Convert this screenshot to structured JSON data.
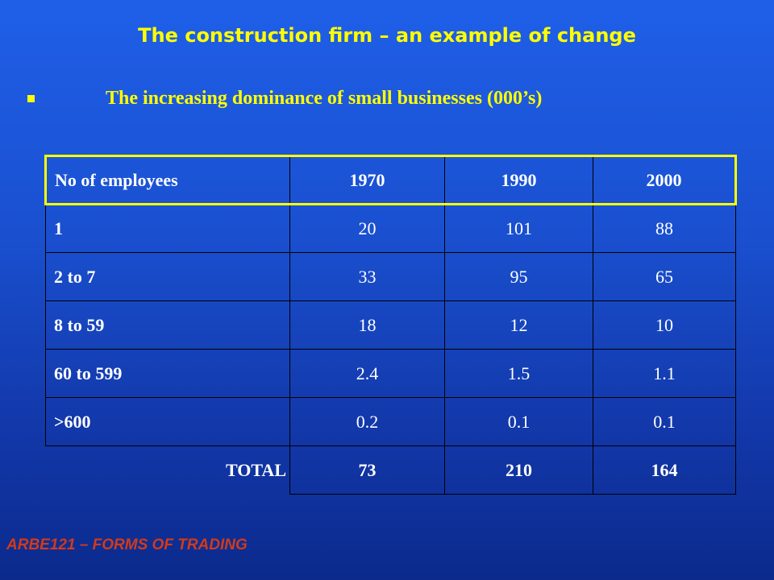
{
  "title": "The construction firm – an example of change",
  "subtitle": "The increasing dominance of small businesses (000’s)",
  "table": {
    "headers": [
      "No of employees",
      "1970",
      "1990",
      "2000"
    ],
    "rows": [
      {
        "label": "1",
        "values": [
          "20",
          "101",
          "88"
        ]
      },
      {
        "label": "2 to 7",
        "values": [
          "33",
          "95",
          "65"
        ]
      },
      {
        "label": "8 to 59",
        "values": [
          "18",
          "12",
          "10"
        ]
      },
      {
        "label": "60 to 599",
        "values": [
          "2.4",
          "1.5",
          "1.1"
        ]
      },
      {
        "label": ">600",
        "values": [
          "0.2",
          "0.1",
          "0.1"
        ]
      }
    ],
    "total": {
      "label": "TOTAL",
      "values": [
        "73",
        "210",
        "164"
      ]
    }
  },
  "footer": "ARBE121 – FORMS OF TRADING",
  "colors": {
    "background": "#1a50d0",
    "title": "#ffff00",
    "text": "#ffffff",
    "footer": "#d23a1a",
    "header_border": "#ffff00"
  }
}
